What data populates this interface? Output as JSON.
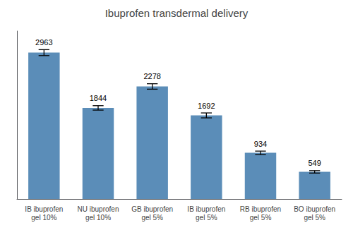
{
  "chart_data": {
    "type": "bar",
    "title": "Ibuprofen transdermal delivery",
    "categories": [
      "IB ibuprofen\ngel 10%",
      "NU ibuprofen\ngel 10%",
      "GB ibuprofen\ngel 5%",
      "IB ibuprofen\ngel 5%",
      "RB ibuprofen\ngel 5%",
      "BO ibuprofen\ngel 5%"
    ],
    "values": [
      2963,
      1844,
      2278,
      1692,
      934,
      549
    ],
    "errors": [
      60,
      45,
      55,
      50,
      35,
      25
    ],
    "color": "#5b8db8",
    "ylim": [
      0,
      3400
    ],
    "grid": false,
    "data_labels": true,
    "tick_labels": "x"
  }
}
